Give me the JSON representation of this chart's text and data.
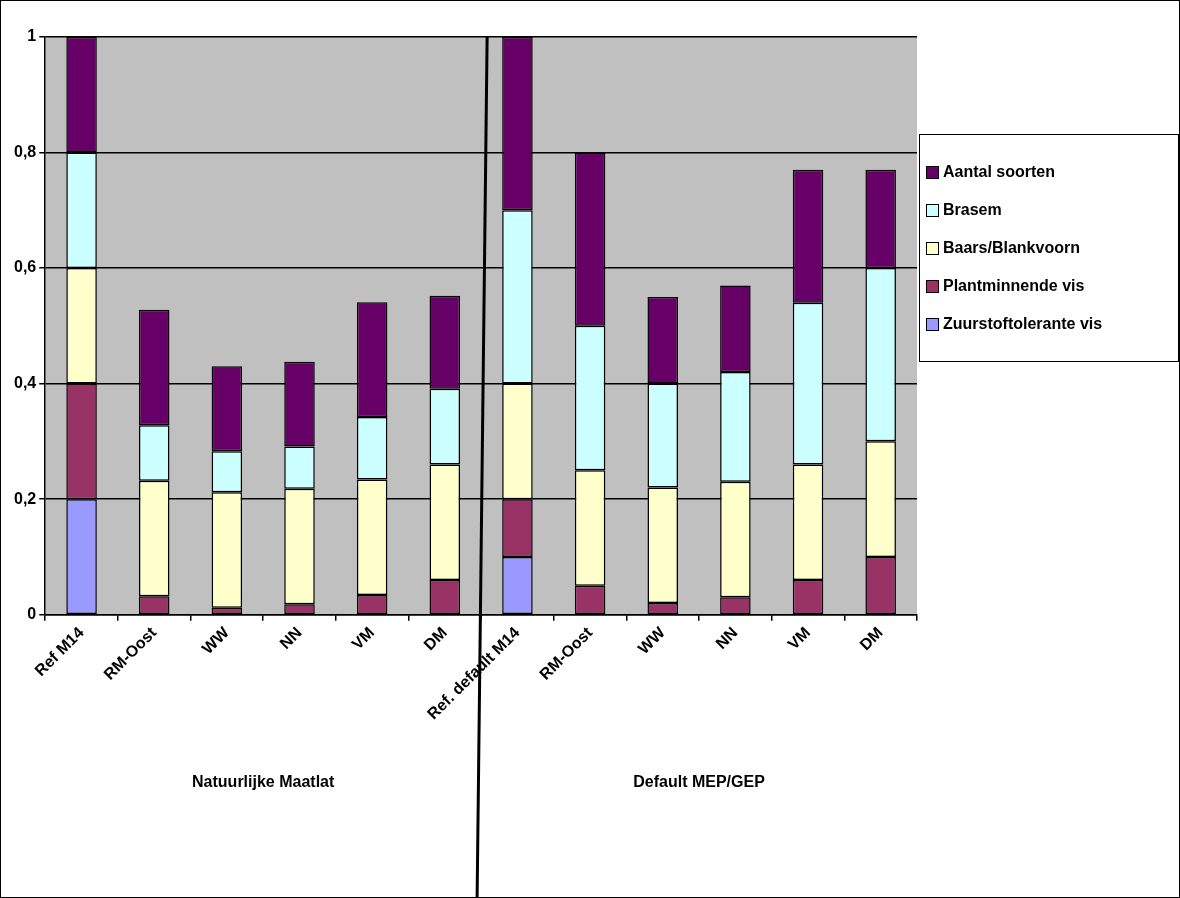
{
  "chart_data": {
    "type": "bar",
    "stacked": true,
    "categories": [
      "Ref M14",
      "RM-Oost",
      "WW",
      "NN",
      "VM",
      "DM",
      "Ref. default M14",
      "RM-Oost",
      "WW",
      "NN",
      "VM",
      "DM"
    ],
    "series": [
      {
        "name": "Zuurstoftolerante vis",
        "color": "#9999ff",
        "values": [
          0.2,
          0,
          0,
          0,
          0,
          0,
          0.1,
          0,
          0,
          0,
          0,
          0
        ]
      },
      {
        "name": "Plantminnende vis",
        "color": "#993366",
        "values": [
          0.2,
          0.032,
          0.012,
          0.018,
          0.034,
          0.06,
          0.1,
          0.05,
          0.02,
          0.03,
          0.06,
          0.1
        ]
      },
      {
        "name": "Baars/Blankvoorn",
        "color": "#ffffcc",
        "values": [
          0.2,
          0.2,
          0.2,
          0.2,
          0.2,
          0.2,
          0.2,
          0.2,
          0.2,
          0.2,
          0.2,
          0.2
        ]
      },
      {
        "name": "Brasem",
        "color": "#ccffff",
        "values": [
          0.2,
          0.096,
          0.071,
          0.073,
          0.108,
          0.131,
          0.3,
          0.25,
          0.18,
          0.19,
          0.28,
          0.3
        ]
      },
      {
        "name": "Aantal soorten",
        "color": "#660066",
        "values": [
          0.2,
          0.2,
          0.147,
          0.147,
          0.199,
          0.161,
          0.3,
          0.3,
          0.15,
          0.15,
          0.23,
          0.17
        ]
      }
    ],
    "ylim": [
      0,
      1
    ],
    "yticks": [
      0,
      {
        "value": 0.2,
        "label": "0,2"
      },
      {
        "value": 0.4,
        "label": "0,4"
      },
      {
        "value": 0.6,
        "label": "0,6"
      },
      {
        "value": 0.8,
        "label": "0,8"
      },
      1
    ],
    "grid": "y",
    "legend": "right",
    "annotations": [
      "Natuurlijke Maatlat",
      "Default MEP/GEP"
    ]
  }
}
